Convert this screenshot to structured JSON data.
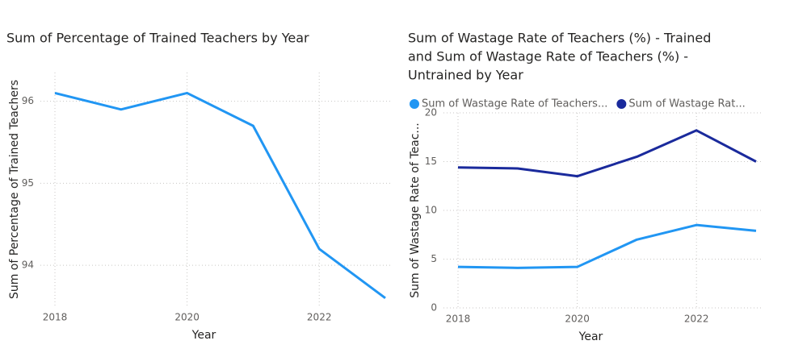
{
  "chart_data": [
    {
      "type": "line",
      "title": "Sum of Percentage of Trained Teachers by Year",
      "x_label": "Year",
      "y_label": "Sum of Percentage of Trained Teachers",
      "x": [
        2018,
        2019,
        2020,
        2021,
        2022,
        2023
      ],
      "series": [
        {
          "name": "Sum of Percentage of Trained Teachers",
          "color": "#2196f3",
          "values": [
            96.1,
            95.9,
            96.1,
            95.7,
            94.2,
            93.6
          ]
        }
      ],
      "xlim": [
        2018,
        2023
      ],
      "xticks": [
        2018,
        2020,
        2022
      ],
      "ylim": [
        93.5,
        96.35
      ],
      "yticks": [
        94,
        95,
        96
      ],
      "grid": true
    },
    {
      "type": "line",
      "title_lines": [
        "Sum of Wastage Rate of Teachers (%) - Trained",
        "and Sum of Wastage Rate of Teachers (%) -",
        "Untrained by Year"
      ],
      "x_label": "Year",
      "y_label": "Sum of Wastage Rate of Teac...",
      "x": [
        2018,
        2019,
        2020,
        2021,
        2022,
        2023
      ],
      "series": [
        {
          "name": "Sum of Wastage Rate of Teachers...",
          "color": "#2196f3",
          "values": [
            4.2,
            4.1,
            4.2,
            7.0,
            8.5,
            7.9
          ]
        },
        {
          "name": "Sum of Wastage Rat...",
          "color": "#1a2a9c",
          "values": [
            14.4,
            14.3,
            13.5,
            15.5,
            18.2,
            15.0
          ]
        }
      ],
      "xlim": [
        2018,
        2023
      ],
      "xticks": [
        2018,
        2020,
        2022
      ],
      "ylim": [
        0,
        20
      ],
      "yticks": [
        0,
        5,
        10,
        15,
        20
      ],
      "grid": true,
      "legend": "top-left"
    }
  ]
}
